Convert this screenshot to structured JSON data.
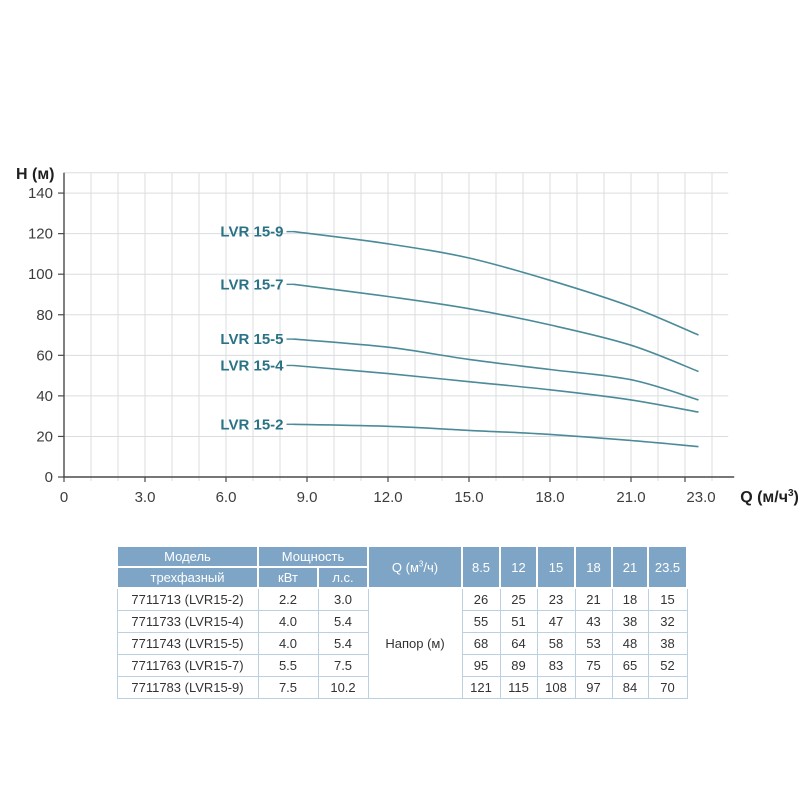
{
  "page": {
    "background": "#ffffff"
  },
  "chart_data": {
    "type": "line",
    "title": "",
    "ylabel": "H (м)",
    "xlabel_prefix": "Q (м/ч",
    "xlabel_sup": "3",
    "xlabel_suffix": ")",
    "x": [
      8.5,
      12,
      15,
      18,
      21,
      23.5
    ],
    "series": [
      {
        "name": "LVR 15-9",
        "values": [
          121,
          115,
          108,
          97,
          84,
          70
        ]
      },
      {
        "name": "LVR 15-7",
        "values": [
          95,
          89,
          83,
          75,
          65,
          52
        ]
      },
      {
        "name": "LVR 15-5",
        "values": [
          68,
          64,
          58,
          53,
          48,
          38
        ]
      },
      {
        "name": "LVR 15-4",
        "values": [
          55,
          51,
          47,
          43,
          38,
          32
        ]
      },
      {
        "name": "LVR 15-2",
        "values": [
          26,
          25,
          23,
          21,
          18,
          15
        ]
      }
    ],
    "xticks": [
      {
        "v": 0,
        "label": "0",
        "dx": 0
      },
      {
        "v": 3,
        "label": "3.0",
        "dx": 0
      },
      {
        "v": 6,
        "label": "6.0",
        "dx": 0
      },
      {
        "v": 9,
        "label": "9.0",
        "dx": 0
      },
      {
        "v": 12,
        "label": "12.0",
        "dx": 0
      },
      {
        "v": 15,
        "label": "15.0",
        "dx": 0
      },
      {
        "v": 18,
        "label": "18.0",
        "dx": 0
      },
      {
        "v": 21,
        "label": "21.0",
        "dx": 0
      },
      {
        "v": 23,
        "label": "23.0",
        "dx": 16
      }
    ],
    "yticks": [
      0,
      20,
      40,
      60,
      80,
      100,
      120,
      140
    ],
    "xlim": [
      0,
      24.6
    ],
    "ylim": [
      0,
      150
    ],
    "grid": true,
    "legend_position": "inline-labels",
    "colors": {
      "curve": "#4b8b99",
      "label": "#2a7285",
      "grid": "#dadde0",
      "axis": "#4a4a4a",
      "tick_text": "#3d3d3d",
      "axis_title": "#1f1f1f"
    }
  },
  "table": {
    "header": {
      "model": "Модель",
      "model_sub": "трехфазный",
      "power": "Мощность",
      "kw": "кВт",
      "hp": "л.с.",
      "q_prefix": "Q (м",
      "q_sup": "3",
      "q_suffix": "/ч)",
      "q_values": [
        "8.5",
        "12",
        "15",
        "18",
        "21",
        "23.5"
      ]
    },
    "body_label": "Напор (м)",
    "rows": [
      {
        "model": "7711713 (LVR15-2)",
        "kw": "2.2",
        "hp": "3.0",
        "values": [
          "26",
          "25",
          "23",
          "21",
          "18",
          "15"
        ]
      },
      {
        "model": "7711733 (LVR15-4)",
        "kw": "4.0",
        "hp": "5.4",
        "values": [
          "55",
          "51",
          "47",
          "43",
          "38",
          "32"
        ]
      },
      {
        "model": "7711743 (LVR15-5)",
        "kw": "4.0",
        "hp": "5.4",
        "values": [
          "68",
          "64",
          "58",
          "53",
          "48",
          "38"
        ]
      },
      {
        "model": "7711763 (LVR15-7)",
        "kw": "5.5",
        "hp": "7.5",
        "values": [
          "95",
          "89",
          "83",
          "75",
          "65",
          "52"
        ]
      },
      {
        "model": "7711783 (LVR15-9)",
        "kw": "7.5",
        "hp": "10.2",
        "values": [
          "121",
          "115",
          "108",
          "97",
          "84",
          "70"
        ]
      }
    ],
    "colors": {
      "header_bg": "#7ea5c6",
      "header_text": "#ffffff",
      "body_border": "#b9d1e0",
      "body_text": "#333333"
    }
  }
}
